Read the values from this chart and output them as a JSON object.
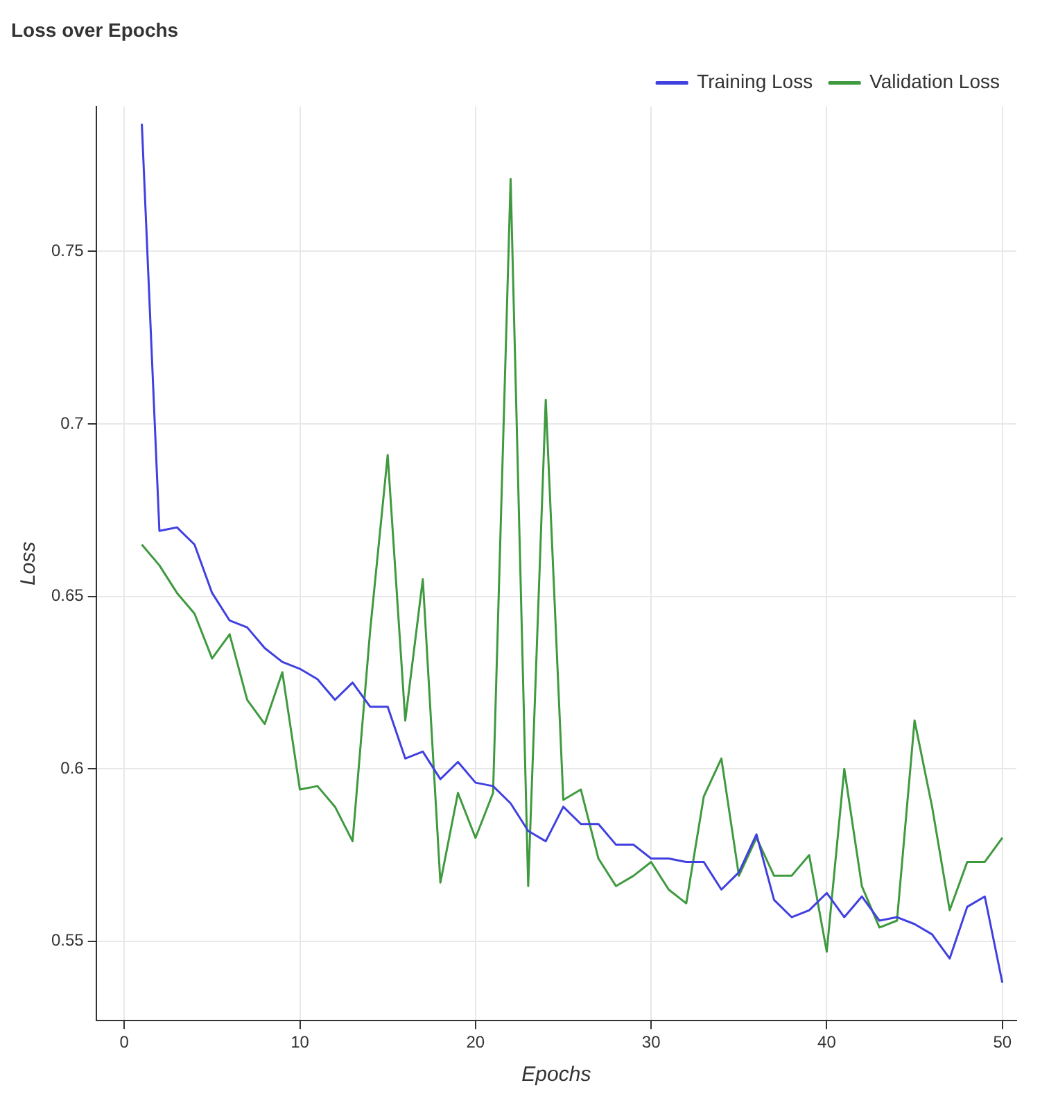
{
  "chart_data": {
    "type": "line",
    "title": "Loss over Epochs",
    "xlabel": "Epochs",
    "ylabel": "Loss",
    "x": [
      1,
      2,
      3,
      4,
      5,
      6,
      7,
      8,
      9,
      10,
      11,
      12,
      13,
      14,
      15,
      16,
      17,
      18,
      19,
      20,
      21,
      22,
      23,
      24,
      25,
      26,
      27,
      28,
      29,
      30,
      31,
      32,
      33,
      34,
      35,
      36,
      37,
      38,
      39,
      40,
      41,
      42,
      43,
      44,
      45,
      46,
      47,
      48,
      49,
      50
    ],
    "series": [
      {
        "name": "Training Loss",
        "color": "#4040e0",
        "values": [
          0.787,
          0.669,
          0.67,
          0.665,
          0.651,
          0.643,
          0.641,
          0.635,
          0.631,
          0.629,
          0.626,
          0.62,
          0.625,
          0.618,
          0.618,
          0.603,
          0.605,
          0.597,
          0.602,
          0.596,
          0.595,
          0.59,
          0.582,
          0.579,
          0.589,
          0.584,
          0.584,
          0.578,
          0.578,
          0.574,
          0.574,
          0.573,
          0.573,
          0.565,
          0.57,
          0.581,
          0.562,
          0.557,
          0.559,
          0.564,
          0.557,
          0.563,
          0.556,
          0.557,
          0.555,
          0.552,
          0.545,
          0.56,
          0.563,
          0.538
        ]
      },
      {
        "name": "Validation Loss",
        "color": "#3f9a3f",
        "values": [
          0.665,
          0.659,
          0.651,
          0.645,
          0.632,
          0.639,
          0.62,
          0.613,
          0.628,
          0.594,
          0.595,
          0.589,
          0.579,
          0.64,
          0.691,
          0.614,
          0.655,
          0.567,
          0.593,
          0.58,
          0.593,
          0.771,
          0.566,
          0.707,
          0.591,
          0.594,
          0.574,
          0.566,
          0.569,
          0.573,
          0.565,
          0.561,
          0.592,
          0.603,
          0.569,
          0.58,
          0.569,
          0.569,
          0.575,
          0.547,
          0.6,
          0.566,
          0.554,
          0.556,
          0.614,
          0.589,
          0.559,
          0.573,
          0.573,
          0.58
        ]
      }
    ],
    "xlim": [
      -1.6,
      50.8
    ],
    "xticks": [
      0,
      10,
      20,
      30,
      40,
      50
    ],
    "ylim": [
      0.527,
      0.792
    ],
    "yticks": [
      0.55,
      0.6,
      0.65,
      0.7,
      0.75
    ],
    "grid": true,
    "legend": "top right",
    "marker": "none",
    "line_style": "solid"
  }
}
